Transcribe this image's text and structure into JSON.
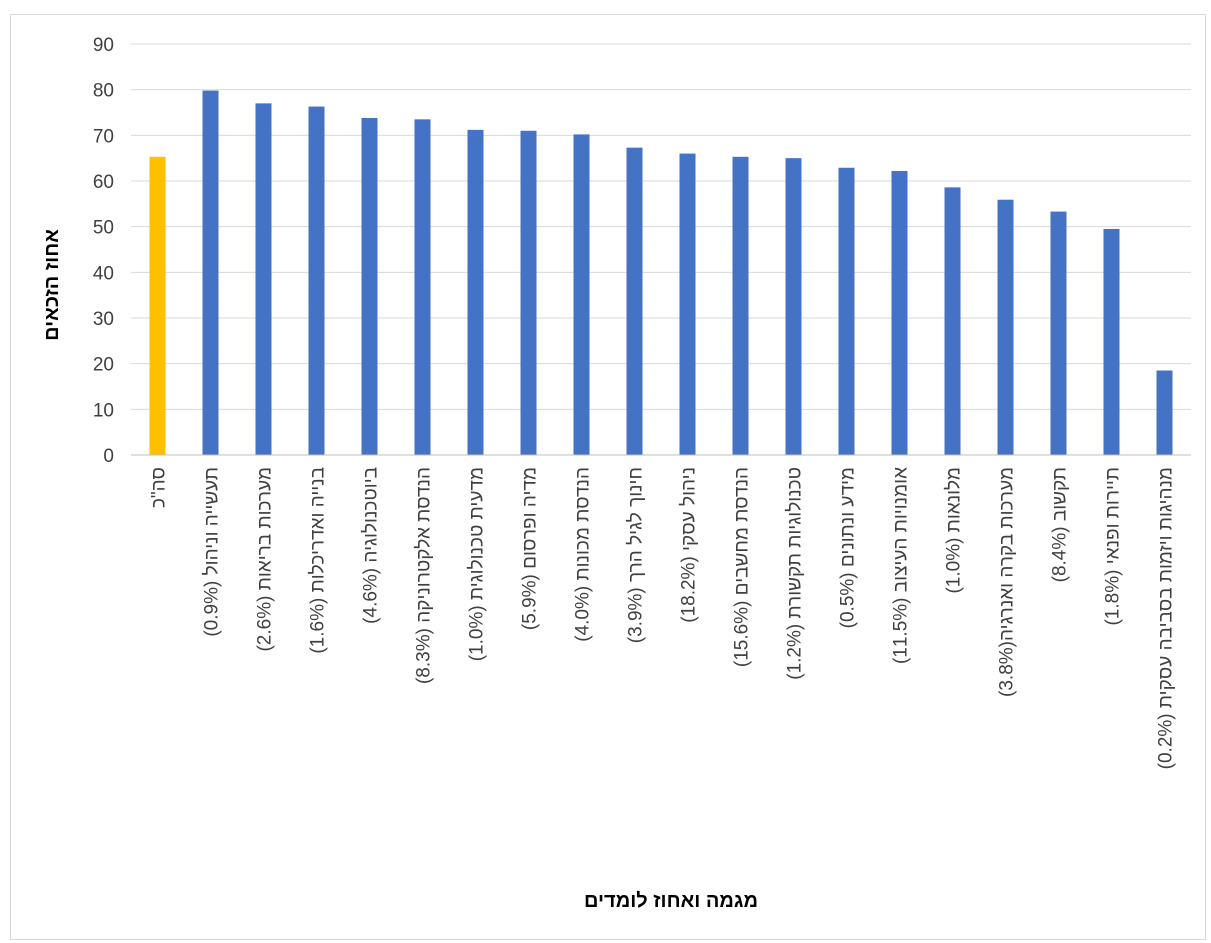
{
  "chart_data": {
    "type": "bar",
    "title": "",
    "xlabel": "מגמה ואחוז לומדים",
    "ylabel": "אחוז הזכאים",
    "ylim": [
      0,
      90
    ],
    "yticks": [
      0,
      10,
      20,
      30,
      40,
      50,
      60,
      70,
      80,
      90
    ],
    "grid": true,
    "legend": "none",
    "colors": {
      "default": "#4472c4",
      "highlight": "#ffc000",
      "grid": "#d9d9d9",
      "axis": "#bfbfbf"
    },
    "categories": [
      "סה\"כ",
      "תעשייה וניהול (0.9%)",
      "מערכות בריאות (2.6%)",
      "בנייה ואדריכלות (1.6%)",
      "ביוטכנולוגיה (4.6%)",
      "הנדסת אלקטרוניקה (8.3%)",
      "מדעית טכנולוגית (1.0%)",
      "מדיה ופרסום (5.9%)",
      "הנדסת מכונות (4.0%)",
      "חינוך לגיל הרך (3.9%)",
      "ניהול עסקי (18.2%)",
      "הנדסת מחשבים (15.6%)",
      "טכנולוגיות תקשורת (1.2%)",
      "מידע ונתונים (0.5%)",
      "אומנויות העיצוב (11.5%)",
      "מלונאות (1.0%)",
      "מערכות בקרה ואנרגיה(3.8%)",
      "תקשוב (8.4%)",
      "תיירות ופנאי (1.8%)",
      "מנהיגות ויזמות בסביבה עסקית (0.2%)"
    ],
    "values": [
      65.3,
      79.8,
      77.0,
      76.3,
      73.8,
      73.5,
      71.2,
      71.0,
      70.2,
      67.3,
      66.0,
      65.3,
      65.0,
      62.9,
      62.2,
      58.6,
      55.9,
      53.3,
      49.5,
      18.5
    ],
    "highlight_index": 0
  }
}
